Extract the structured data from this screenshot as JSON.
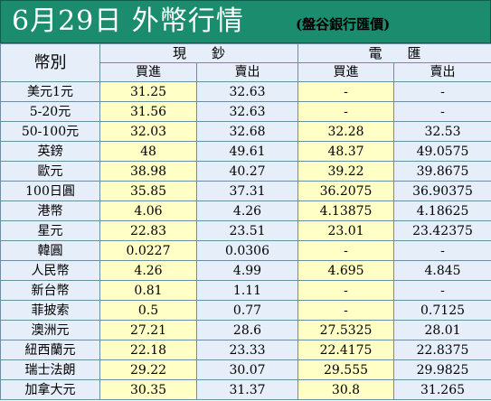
{
  "header": {
    "title": "6月29日 外幣行情",
    "subtitle": "(盤谷銀行匯價)"
  },
  "table": {
    "corner_label": "幣別",
    "group_cash": "現鈔",
    "group_transfer": "電匯",
    "buy_label": "買進",
    "sell_label": "賣出",
    "rows": [
      {
        "name": "美元1元",
        "cash_buy": "31.25",
        "cash_sell": "32.63",
        "tt_buy": "-",
        "tt_sell": "-"
      },
      {
        "name": "5-20元",
        "cash_buy": "31.56",
        "cash_sell": "32.63",
        "tt_buy": "-",
        "tt_sell": "-"
      },
      {
        "name": "50-100元",
        "cash_buy": "32.03",
        "cash_sell": "32.68",
        "tt_buy": "32.28",
        "tt_sell": "32.53"
      },
      {
        "name": "英鎊",
        "cash_buy": "48",
        "cash_sell": "49.61",
        "tt_buy": "48.37",
        "tt_sell": "49.0575"
      },
      {
        "name": "歐元",
        "cash_buy": "38.98",
        "cash_sell": "40.27",
        "tt_buy": "39.22",
        "tt_sell": "39.8675"
      },
      {
        "name": "100日圓",
        "cash_buy": "35.85",
        "cash_sell": "37.31",
        "tt_buy": "36.2075",
        "tt_sell": "36.90375"
      },
      {
        "name": "港幣",
        "cash_buy": "4.06",
        "cash_sell": "4.26",
        "tt_buy": "4.13875",
        "tt_sell": "4.18625"
      },
      {
        "name": "星元",
        "cash_buy": "22.83",
        "cash_sell": "23.51",
        "tt_buy": "23.01",
        "tt_sell": "23.42375"
      },
      {
        "name": "韓圓",
        "cash_buy": "0.0227",
        "cash_sell": "0.0306",
        "tt_buy": "-",
        "tt_sell": "-"
      },
      {
        "name": "人民幣",
        "cash_buy": "4.26",
        "cash_sell": "4.99",
        "tt_buy": "4.695",
        "tt_sell": "4.845"
      },
      {
        "name": "新台幣",
        "cash_buy": "0.81",
        "cash_sell": "1.11",
        "tt_buy": "-",
        "tt_sell": "-"
      },
      {
        "name": "菲披索",
        "cash_buy": "0.5",
        "cash_sell": "0.77",
        "tt_buy": "-",
        "tt_sell": "0.7125"
      },
      {
        "name": "澳洲元",
        "cash_buy": "27.21",
        "cash_sell": "28.6",
        "tt_buy": "27.5325",
        "tt_sell": "28.01"
      },
      {
        "name": "紐西蘭元",
        "cash_buy": "22.18",
        "cash_sell": "23.33",
        "tt_buy": "22.4175",
        "tt_sell": "22.8375"
      },
      {
        "name": "瑞士法朗",
        "cash_buy": "29.22",
        "cash_sell": "30.07",
        "tt_buy": "29.555",
        "tt_sell": "29.9825"
      },
      {
        "name": "加拿大元",
        "cash_buy": "30.35",
        "cash_sell": "31.37",
        "tt_buy": "30.8",
        "tt_sell": "31.265"
      }
    ]
  }
}
